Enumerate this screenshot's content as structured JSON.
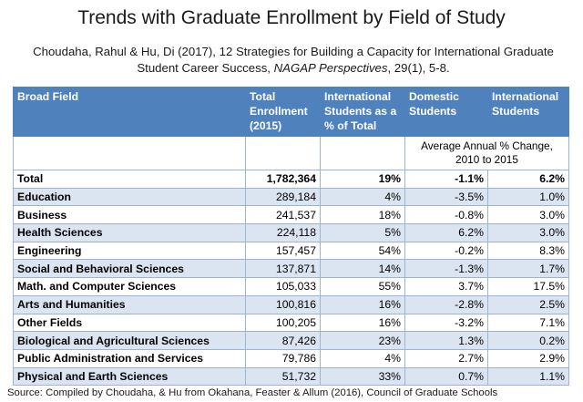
{
  "title": "Trends with Graduate Enrollment by Field of Study",
  "citation": {
    "prefix": "Choudaha, Rahul & Hu, Di (2017), 12 Strategies for Building a Capacity for International Graduate Student Career Success, ",
    "journal": "NAGAP Perspectives",
    "suffix": ", 29(1), 5-8."
  },
  "table": {
    "headers": [
      "Broad Field",
      "Total Enrollment (2015)",
      "International Students as a % of Total",
      "Domestic Students",
      "International Students"
    ],
    "subheader": "Average Annual % Change, 2010 to 2015",
    "header_color": "#4f81bd",
    "band_color": "#dbe5f1",
    "rows": [
      {
        "field": "Total",
        "enrollment": "1,782,364",
        "intl_pct": "19%",
        "domestic": "-1.1%",
        "international": "6.2%"
      },
      {
        "field": "Education",
        "enrollment": "289,184",
        "intl_pct": "4%",
        "domestic": "-3.5%",
        "international": "1.0%"
      },
      {
        "field": "Business",
        "enrollment": "241,537",
        "intl_pct": "18%",
        "domestic": "-0.8%",
        "international": "3.0%"
      },
      {
        "field": "Health Sciences",
        "enrollment": "224,118",
        "intl_pct": "5%",
        "domestic": "6.2%",
        "international": "3.0%"
      },
      {
        "field": "Engineering",
        "enrollment": "157,457",
        "intl_pct": "54%",
        "domestic": "-0.2%",
        "international": "8.3%"
      },
      {
        "field": "Social and Behavioral Sciences",
        "enrollment": "137,871",
        "intl_pct": "14%",
        "domestic": "-1.3%",
        "international": "1.7%"
      },
      {
        "field": "Math. and Computer Sciences",
        "enrollment": "105,033",
        "intl_pct": "55%",
        "domestic": "3.7%",
        "international": "17.5%"
      },
      {
        "field": "Arts and Humanities",
        "enrollment": "100,816",
        "intl_pct": "16%",
        "domestic": "-2.8%",
        "international": "2.5%"
      },
      {
        "field": "Other Fields",
        "enrollment": "100,205",
        "intl_pct": "16%",
        "domestic": "-3.2%",
        "international": "7.1%"
      },
      {
        "field": "Biological and Agricultural Sciences",
        "enrollment": "87,426",
        "intl_pct": "23%",
        "domestic": "1.3%",
        "international": "0.2%"
      },
      {
        "field": "Public Administration and Services",
        "enrollment": "79,786",
        "intl_pct": "4%",
        "domestic": "2.7%",
        "international": "2.9%"
      },
      {
        "field": "Physical and Earth Sciences",
        "enrollment": "51,732",
        "intl_pct": "33%",
        "domestic": "0.7%",
        "international": "1.1%"
      }
    ]
  },
  "source": "Source: Compiled by Choudaha, & Hu from Okahana, Feaster & Allum (2016), Council of Graduate Schools"
}
